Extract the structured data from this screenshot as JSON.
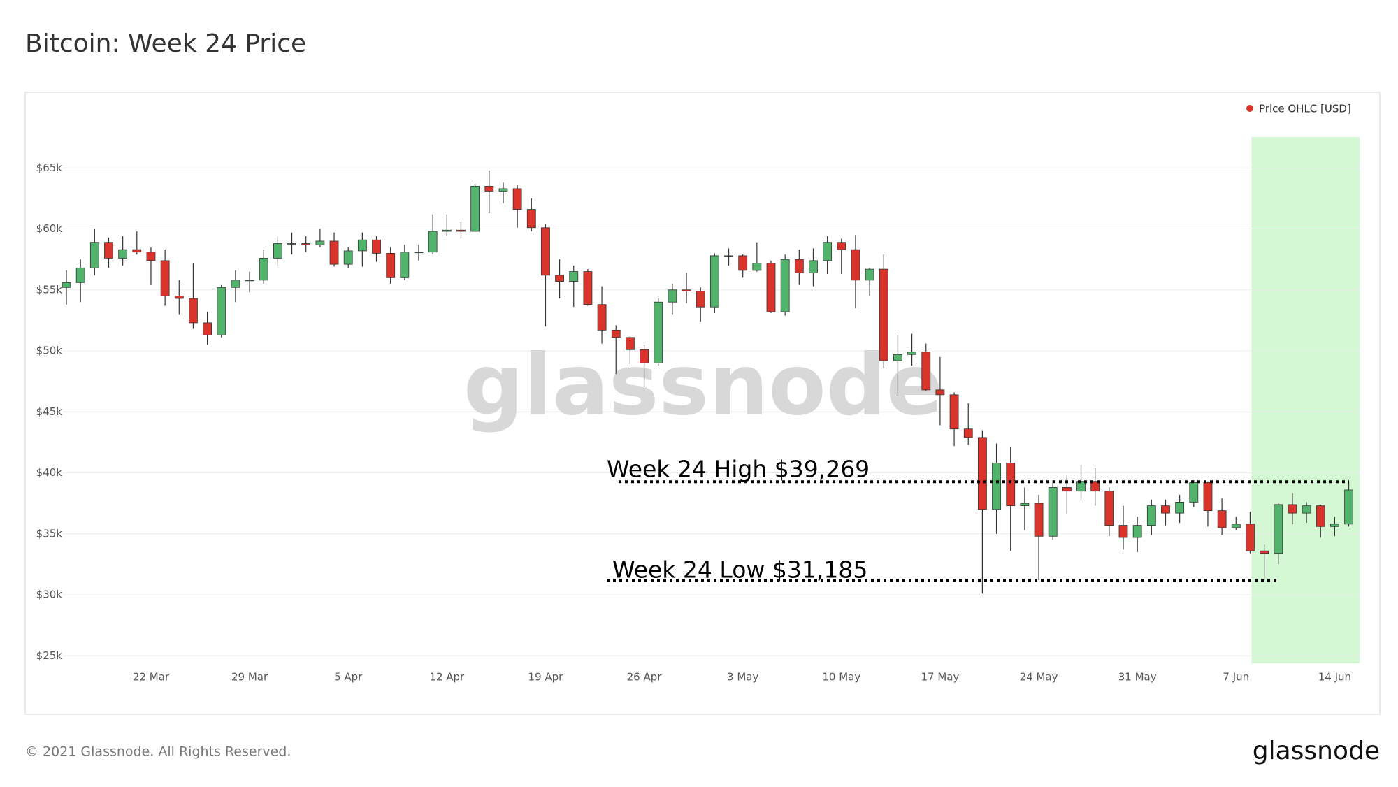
{
  "chart_data": {
    "type": "candlestick",
    "title": "Bitcoin: Week 24 Price",
    "watermark": "glassnode",
    "footer": "© 2021 Glassnode. All Rights Reserved.",
    "logo": "glassnode",
    "legend_position": "top-right",
    "up_color": "#52b36c",
    "down_color": "#d9342b",
    "grid": true,
    "highlight": {
      "start": "7 Jun",
      "color": "#d4f7d4"
    },
    "categories": [
      null,
      null,
      null,
      null,
      null,
      null,
      "22 Mar",
      null,
      null,
      null,
      null,
      null,
      null,
      "29 Mar",
      null,
      null,
      null,
      null,
      null,
      null,
      "5 Apr",
      null,
      null,
      null,
      null,
      null,
      null,
      "12 Apr",
      null,
      null,
      null,
      null,
      null,
      null,
      "19 Apr",
      null,
      null,
      null,
      null,
      null,
      null,
      "26 Apr",
      null,
      null,
      null,
      null,
      null,
      null,
      "3 May",
      null,
      null,
      null,
      null,
      null,
      null,
      "10 May",
      null,
      null,
      null,
      null,
      null,
      null,
      "17 May",
      null,
      null,
      null,
      null,
      null,
      null,
      "24 May",
      null,
      null,
      null,
      null,
      null,
      null,
      "31 May",
      null,
      null,
      null,
      null,
      null,
      null,
      "7 Jun",
      null,
      null,
      null,
      null,
      null,
      null,
      "14 Jun",
      null
    ],
    "series": [
      {
        "name": "Price OHLC [USD]",
        "color": "#d9342b",
        "open": [
          55200,
          55600,
          56800,
          58900,
          57600,
          58300,
          58100,
          57400,
          54500,
          54300,
          52300,
          51300,
          55200,
          55800,
          55800,
          57600,
          58800,
          58800,
          58700,
          59000,
          57100,
          58200,
          59100,
          58000,
          56000,
          58100,
          58100,
          59800,
          59900,
          59800,
          63500,
          63100,
          63300,
          61600,
          60100,
          56200,
          55700,
          56500,
          53800,
          51700,
          51100,
          50100,
          49000,
          54000,
          55000,
          54900,
          53600,
          57800,
          57800,
          56600,
          57200,
          53200,
          57500,
          56400,
          57400,
          58900,
          58300,
          55800,
          56700,
          49200,
          49700,
          49900,
          46800,
          46400,
          43600,
          42900,
          37000,
          40800,
          37300,
          37500,
          34800,
          38800,
          38500,
          39300,
          38500,
          35700,
          34700,
          35700,
          37300,
          36700,
          37600,
          39200,
          36900,
          35500,
          35800,
          33600,
          33400,
          37400,
          36700,
          37300,
          35600,
          35800
        ],
        "high": [
          56600,
          57500,
          60000,
          59300,
          59400,
          59800,
          58500,
          58300,
          55800,
          57200,
          53200,
          55400,
          56600,
          56500,
          58300,
          59300,
          59700,
          59400,
          60000,
          59700,
          58500,
          59700,
          59400,
          58500,
          58700,
          58700,
          61200,
          61200,
          60600,
          63700,
          64800,
          63800,
          63600,
          62500,
          60400,
          57500,
          57000,
          56700,
          55300,
          52100,
          51200,
          50500,
          54300,
          55500,
          56400,
          55200,
          58000,
          58400,
          57900,
          58900,
          57400,
          57900,
          58300,
          58400,
          59400,
          59200,
          59500,
          56800,
          57900,
          51300,
          51400,
          50600,
          49500,
          46600,
          45700,
          43500,
          42400,
          42100,
          38800,
          38200,
          39400,
          39800,
          40700,
          40400,
          38800,
          37300,
          36400,
          37800,
          37800,
          38200,
          39400,
          39300,
          37900,
          36400,
          36800,
          34100,
          37500,
          38300,
          37600,
          37400,
          36400,
          39269
        ],
        "low": [
          53800,
          54000,
          56200,
          56800,
          57000,
          57900,
          55400,
          53700,
          53000,
          51800,
          50500,
          51100,
          54000,
          54800,
          55500,
          57000,
          57900,
          58100,
          58500,
          56900,
          56800,
          56900,
          57300,
          55500,
          55800,
          57400,
          57900,
          59400,
          59200,
          59800,
          61300,
          62100,
          60100,
          59800,
          52000,
          54300,
          53600,
          53700,
          50600,
          48100,
          48900,
          47100,
          48800,
          53000,
          53900,
          52400,
          53100,
          57000,
          56000,
          56500,
          53100,
          52900,
          55400,
          55300,
          56300,
          56300,
          53500,
          54500,
          48600,
          46300,
          48800,
          46700,
          43900,
          42200,
          42300,
          30100,
          35000,
          33600,
          35300,
          31200,
          34500,
          36600,
          37700,
          37300,
          34800,
          33700,
          33500,
          34900,
          35700,
          35900,
          37200,
          35600,
          34900,
          35300,
          33400,
          31185,
          32500,
          35800,
          35900,
          34700,
          34800,
          35600
        ],
        "close": [
          55600,
          56800,
          58900,
          57600,
          58300,
          58100,
          57400,
          54500,
          54300,
          52300,
          51300,
          55200,
          55800,
          55800,
          57600,
          58800,
          58800,
          58700,
          59000,
          57100,
          58200,
          59100,
          58000,
          56000,
          58100,
          58100,
          59800,
          59900,
          59800,
          63500,
          63100,
          63300,
          61600,
          60100,
          56200,
          55700,
          56500,
          53800,
          51700,
          51100,
          50100,
          49000,
          54000,
          55000,
          54900,
          53600,
          57800,
          57800,
          56600,
          57200,
          53200,
          57500,
          56400,
          57400,
          58900,
          58300,
          55800,
          56700,
          49200,
          49700,
          49900,
          46800,
          46400,
          43600,
          42900,
          37000,
          40800,
          37300,
          37500,
          34800,
          38800,
          38500,
          39300,
          38500,
          35700,
          34700,
          35700,
          37300,
          36700,
          37600,
          39200,
          36900,
          35500,
          35800,
          33600,
          33400,
          37400,
          36700,
          37300,
          35600,
          35800,
          38600
        ]
      }
    ],
    "ylim": [
      24500,
      69600
    ],
    "yticks": [
      {
        "value": 25000,
        "label": "$25k"
      },
      {
        "value": 30000,
        "label": "$30k"
      },
      {
        "value": 35000,
        "label": "$35k"
      },
      {
        "value": 40000,
        "label": "$40k"
      },
      {
        "value": 45000,
        "label": "$45k"
      },
      {
        "value": 50000,
        "label": "$50k"
      },
      {
        "value": 55000,
        "label": "$55k"
      },
      {
        "value": 60000,
        "label": "$60k"
      },
      {
        "value": 65000,
        "label": "$65k"
      }
    ],
    "annotations": [
      {
        "text": "Week 24 High $39,269",
        "value": 39269
      },
      {
        "text": "Week 24 Low $31,185",
        "value": 31185
      }
    ]
  }
}
